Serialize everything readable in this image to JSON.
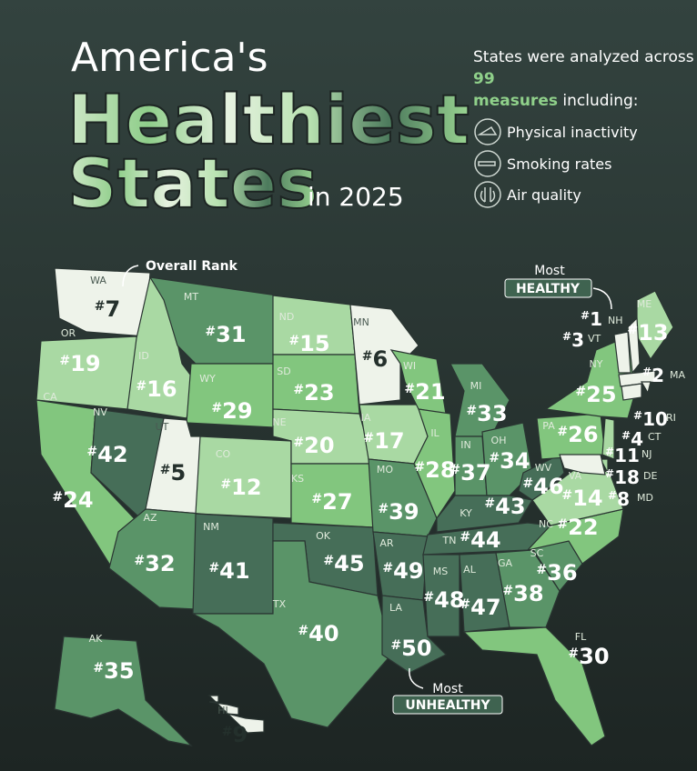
{
  "header": {
    "title_line1": "America's",
    "title_line2": "Healthiest",
    "title_line3": "States",
    "title_year": "in 2025"
  },
  "intro": {
    "prefix": "States were analyzed across",
    "measures_count": 99,
    "measures_word": "measures",
    "suffix": "including:",
    "measures": [
      "Physical inactivity",
      "Smoking rates",
      "Air quality"
    ]
  },
  "annotations": {
    "overall_rank": "Overall Rank",
    "most_top": "Most",
    "healthy": "HEALTHY",
    "most_bottom": "Most",
    "unhealthy": "UNHEALTHY"
  },
  "rank_prefix": "#",
  "states": [
    {
      "abbr": "WA",
      "rank": 7
    },
    {
      "abbr": "OR",
      "rank": 19
    },
    {
      "abbr": "CA",
      "rank": 24
    },
    {
      "abbr": "ID",
      "rank": 16
    },
    {
      "abbr": "NV",
      "rank": 42
    },
    {
      "abbr": "MT",
      "rank": 31
    },
    {
      "abbr": "WY",
      "rank": 29
    },
    {
      "abbr": "UT",
      "rank": 5
    },
    {
      "abbr": "CO",
      "rank": 12
    },
    {
      "abbr": "AZ",
      "rank": 32
    },
    {
      "abbr": "NM",
      "rank": 41
    },
    {
      "abbr": "ND",
      "rank": 15
    },
    {
      "abbr": "SD",
      "rank": 23
    },
    {
      "abbr": "NE",
      "rank": 20
    },
    {
      "abbr": "KS",
      "rank": 27
    },
    {
      "abbr": "OK",
      "rank": 45
    },
    {
      "abbr": "TX",
      "rank": 40
    },
    {
      "abbr": "MN",
      "rank": 6
    },
    {
      "abbr": "IA",
      "rank": 17
    },
    {
      "abbr": "MO",
      "rank": 39
    },
    {
      "abbr": "AR",
      "rank": 49
    },
    {
      "abbr": "LA",
      "rank": 50
    },
    {
      "abbr": "WI",
      "rank": 21
    },
    {
      "abbr": "IL",
      "rank": 28
    },
    {
      "abbr": "MI",
      "rank": 33
    },
    {
      "abbr": "IN",
      "rank": 37
    },
    {
      "abbr": "OH",
      "rank": 34
    },
    {
      "abbr": "KY",
      "rank": 43
    },
    {
      "abbr": "TN",
      "rank": 44
    },
    {
      "abbr": "MS",
      "rank": 48
    },
    {
      "abbr": "AL",
      "rank": 47
    },
    {
      "abbr": "GA",
      "rank": 38
    },
    {
      "abbr": "FL",
      "rank": 30
    },
    {
      "abbr": "SC",
      "rank": 36
    },
    {
      "abbr": "NC",
      "rank": 22
    },
    {
      "abbr": "VA",
      "rank": 14
    },
    {
      "abbr": "WV",
      "rank": 46
    },
    {
      "abbr": "PA",
      "rank": 26
    },
    {
      "abbr": "NY",
      "rank": 25
    },
    {
      "abbr": "ME",
      "rank": 13
    },
    {
      "abbr": "NH",
      "rank": 1
    },
    {
      "abbr": "VT",
      "rank": 3
    },
    {
      "abbr": "MA",
      "rank": 2
    },
    {
      "abbr": "RI",
      "rank": 10
    },
    {
      "abbr": "CT",
      "rank": 4
    },
    {
      "abbr": "NJ",
      "rank": 11
    },
    {
      "abbr": "DE",
      "rank": 18
    },
    {
      "abbr": "MD",
      "rank": 8
    },
    {
      "abbr": "AK",
      "rank": 35
    },
    {
      "abbr": "HI",
      "rank": 9
    }
  ]
}
